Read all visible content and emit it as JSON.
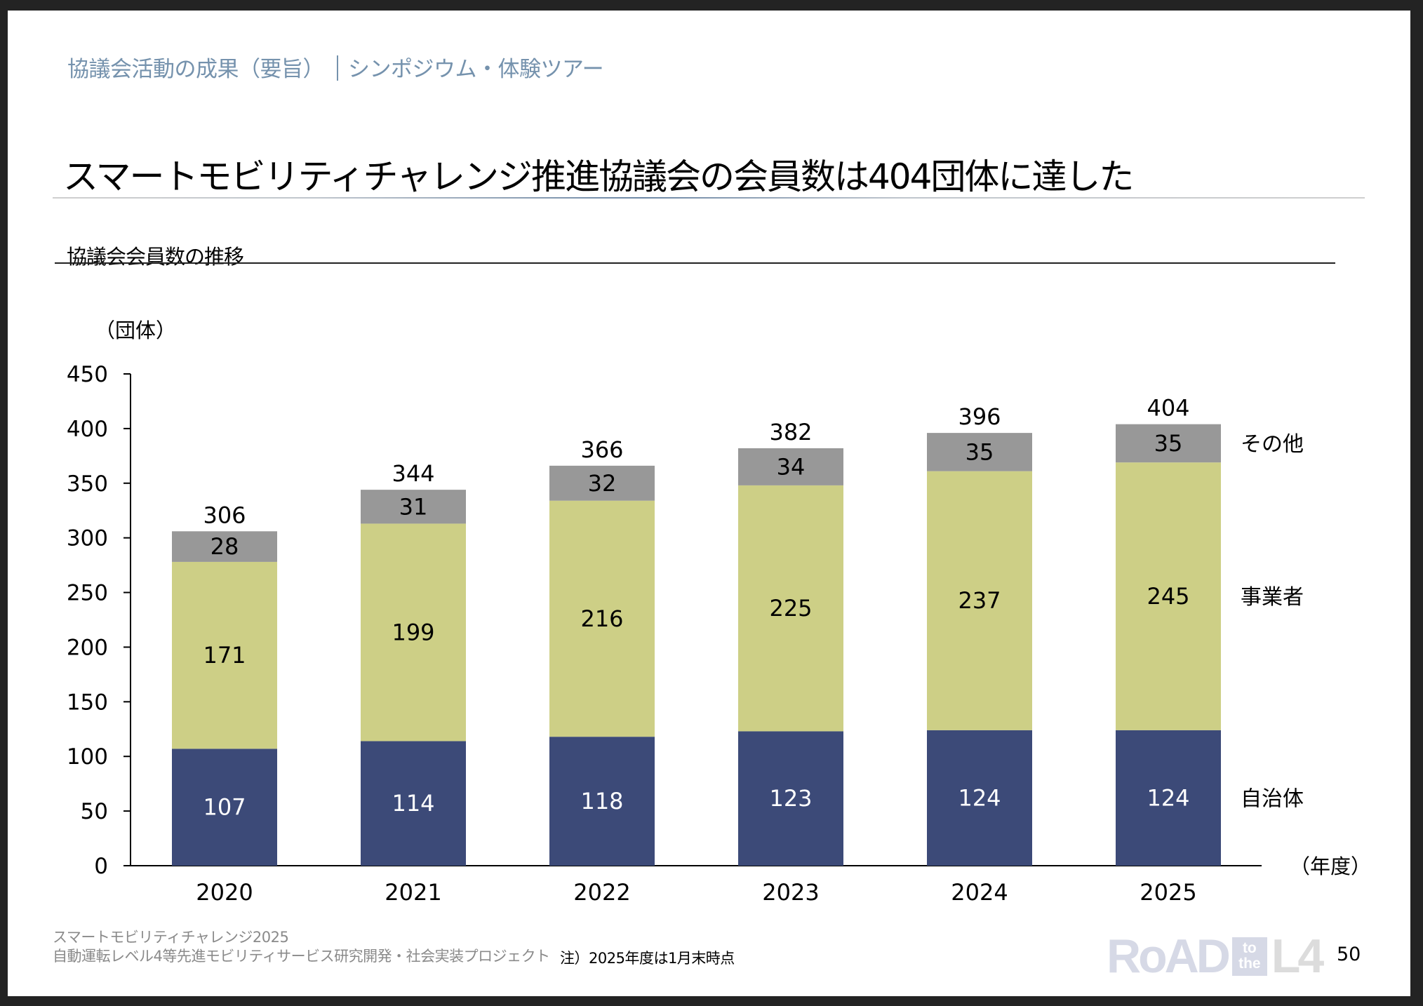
{
  "header": {
    "section": "協議会活動の成果（要旨）",
    "subsection": "シンポジウム・体験ツアー"
  },
  "page_title": "スマートモビリティチャレンジ推進協議会の会員数は404団体に達した",
  "chart_heading": "協議会会員数の推移",
  "chart_data": {
    "type": "bar",
    "stacked": true,
    "title": "協議会会員数の推移",
    "xlabel": "（年度）",
    "ylabel": "（団体）",
    "categories": [
      "2020",
      "2021",
      "2022",
      "2023",
      "2024",
      "2025"
    ],
    "series": [
      {
        "name": "自治体",
        "color": "#3c4a78",
        "label_color": "#ffffff",
        "values": [
          107,
          114,
          118,
          123,
          124,
          124
        ]
      },
      {
        "name": "事業者",
        "color": "#cdcf86",
        "label_color": "#000000",
        "values": [
          171,
          199,
          216,
          225,
          237,
          245
        ]
      },
      {
        "name": "その他",
        "color": "#989898",
        "label_color": "#000000",
        "values": [
          28,
          31,
          32,
          34,
          35,
          35
        ]
      }
    ],
    "totals": [
      306,
      344,
      366,
      382,
      396,
      404
    ],
    "ylim": [
      0,
      450
    ],
    "yticks": [
      0,
      50,
      100,
      150,
      200,
      250,
      300,
      350,
      400,
      450
    ],
    "grid": false,
    "legend": "right, aligned to 2025 segments"
  },
  "footer": {
    "line1": "スマートモビリティチャレンジ2025",
    "line2": "自動運転レベル4等先進モビリティサービス研究開発・社会実装プロジェクト",
    "note": "注）2025年度は1月末時点"
  },
  "logo": {
    "road": "RoAD",
    "to": "to",
    "the": "the",
    "l4": "L4"
  },
  "page_number": "50"
}
